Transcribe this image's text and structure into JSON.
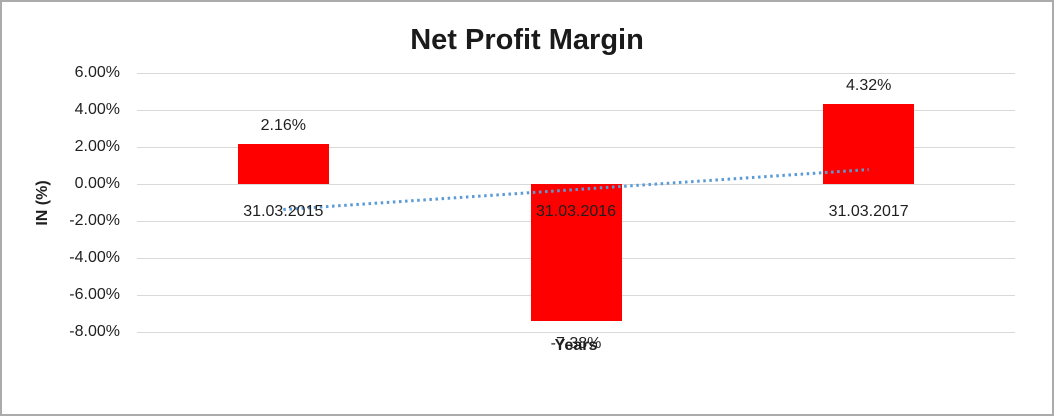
{
  "chart_data": {
    "type": "bar",
    "title": "Net Profit Margin",
    "categories": [
      "31.03.2015",
      "31.03.2016",
      "31.03.2017"
    ],
    "values": [
      2.16,
      -7.38,
      4.32
    ],
    "data_labels": [
      "2.16%",
      "-7.38%",
      "4.32%"
    ],
    "xlabel": "Years",
    "ylabel": "IN (%)",
    "ylim": [
      -8,
      6
    ],
    "yticks": [
      {
        "value": 6,
        "label": "6.00%"
      },
      {
        "value": 4,
        "label": "4.00%"
      },
      {
        "value": 2,
        "label": "2.00%"
      },
      {
        "value": 0,
        "label": "0.00%"
      },
      {
        "value": -2,
        "label": "-2.00%"
      },
      {
        "value": -4,
        "label": "-4.00%"
      },
      {
        "value": -6,
        "label": "-6.00%"
      },
      {
        "value": -8,
        "label": "-8.00%"
      }
    ],
    "grid": true,
    "legend": "none",
    "colors": {
      "bar": "#FF0000",
      "gridline": "#D9D9D9",
      "trendline": "#5B9BD5",
      "text": "#1F1F1F",
      "background": "#FFFFFF"
    },
    "trendline": {
      "style": "dotted",
      "start_value": -1.38,
      "end_value": 0.78
    }
  }
}
